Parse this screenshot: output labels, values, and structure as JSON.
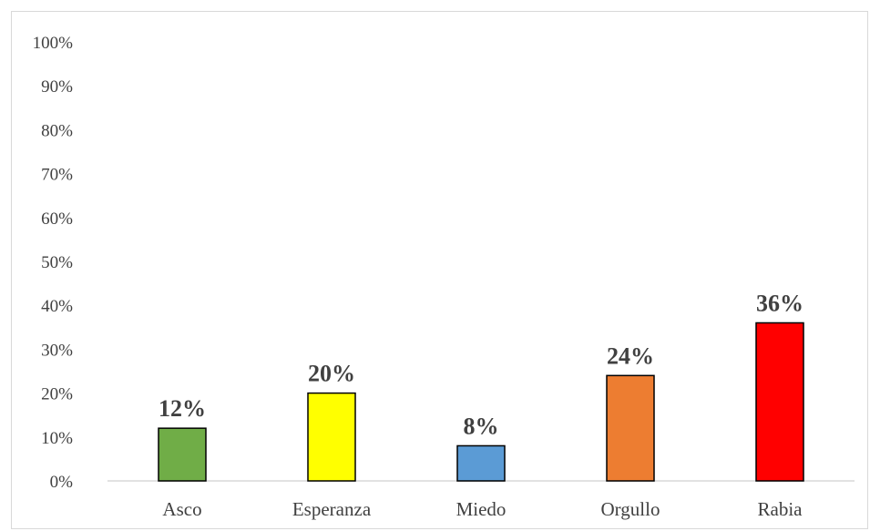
{
  "chart_data": {
    "type": "bar",
    "title": "",
    "xlabel": "",
    "ylabel": "",
    "categories": [
      "Asco",
      "Esperanza",
      "Miedo",
      "Orgullo",
      "Rabia"
    ],
    "values": [
      12,
      20,
      8,
      24,
      36
    ],
    "data_labels": [
      "12%",
      "20%",
      "8%",
      "24%",
      "36%"
    ],
    "colors": [
      "#70ad47",
      "#ffff00",
      "#5b9bd5",
      "#ed7d31",
      "#ff0000"
    ],
    "bar_border_color": "#000000",
    "ylim": [
      0,
      100
    ],
    "yticks": [
      0,
      10,
      20,
      30,
      40,
      50,
      60,
      70,
      80,
      90,
      100
    ],
    "ytick_labels": [
      "0%",
      "10%",
      "20%",
      "30%",
      "40%",
      "50%",
      "60%",
      "70%",
      "80%",
      "90%",
      "100%"
    ],
    "grid": false,
    "legend": "none"
  }
}
